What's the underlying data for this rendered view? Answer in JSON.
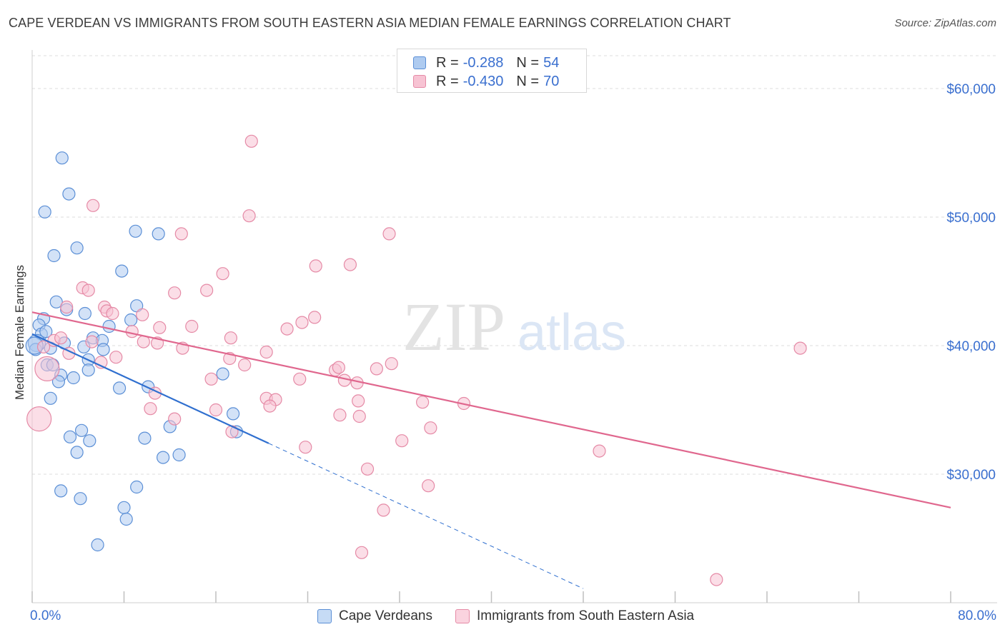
{
  "title": "CAPE VERDEAN VS IMMIGRANTS FROM SOUTH EASTERN ASIA MEDIAN FEMALE EARNINGS CORRELATION CHART",
  "source": "Source: ZipAtlas.com",
  "watermark": {
    "zip": "ZIP",
    "atlas": "atlas"
  },
  "colors": {
    "blue_fill": "#aecbf0",
    "blue_stroke": "#5b8fd6",
    "blue_line": "#2f6fcf",
    "pink_fill": "#f7c3d3",
    "pink_stroke": "#e58aa6",
    "pink_line": "#e0678e",
    "axis_text": "#3a6fcf",
    "grid": "#dddddd"
  },
  "legend": {
    "rows": [
      {
        "r_label": "R =",
        "r_value": "-0.288",
        "n_label": "N =",
        "n_value": "54",
        "color": "blue"
      },
      {
        "r_label": "R =",
        "r_value": "-0.430",
        "n_label": "N =",
        "n_value": "70",
        "color": "pink"
      }
    ]
  },
  "bottom_legend": [
    "Cape Verdeans",
    "Immigrants from South Eastern Asia"
  ],
  "chart_data": {
    "type": "scatter",
    "xlabel": "",
    "ylabel": "Median Female Earnings",
    "xlim": [
      0,
      80
    ],
    "ylim": [
      20000,
      63000
    ],
    "x_tick_labels": {
      "min": "0.0%",
      "max": "80.0%"
    },
    "y_ticks": [
      {
        "value": 60000,
        "label": "$60,000"
      },
      {
        "value": 50000,
        "label": "$50,000"
      },
      {
        "value": 40000,
        "label": "$40,000"
      },
      {
        "value": 30000,
        "label": "$30,000"
      }
    ],
    "series": [
      {
        "name": "Cape Verdeans",
        "color": "blue",
        "points": [
          [
            2.6,
            54600
          ],
          [
            3.2,
            51800
          ],
          [
            1.1,
            50400
          ],
          [
            9.0,
            48900
          ],
          [
            11.0,
            48700
          ],
          [
            3.9,
            47600
          ],
          [
            1.9,
            47000
          ],
          [
            7.8,
            45800
          ],
          [
            2.1,
            43400
          ],
          [
            9.1,
            43100
          ],
          [
            4.6,
            42500
          ],
          [
            1.0,
            42100
          ],
          [
            8.6,
            42000
          ],
          [
            3.0,
            42800
          ],
          [
            0.6,
            41600
          ],
          [
            6.7,
            41500
          ],
          [
            0.8,
            40900
          ],
          [
            5.3,
            40600
          ],
          [
            6.1,
            40400
          ],
          [
            0.4,
            40200
          ],
          [
            2.8,
            40200
          ],
          [
            1.6,
            39800
          ],
          [
            4.5,
            39900
          ],
          [
            6.2,
            39700
          ],
          [
            0.3,
            39700
          ],
          [
            4.9,
            38900
          ],
          [
            1.3,
            38500
          ],
          [
            1.8,
            38500
          ],
          [
            4.9,
            38100
          ],
          [
            16.6,
            37800
          ],
          [
            2.5,
            37700
          ],
          [
            3.6,
            37500
          ],
          [
            2.3,
            37200
          ],
          [
            7.6,
            36700
          ],
          [
            10.1,
            36800
          ],
          [
            1.6,
            35900
          ],
          [
            17.5,
            34700
          ],
          [
            12.0,
            33700
          ],
          [
            4.3,
            33400
          ],
          [
            17.8,
            33300
          ],
          [
            3.3,
            32900
          ],
          [
            5.0,
            32600
          ],
          [
            9.8,
            32800
          ],
          [
            3.9,
            31700
          ],
          [
            12.8,
            31500
          ],
          [
            11.4,
            31300
          ],
          [
            9.1,
            29000
          ],
          [
            2.5,
            28700
          ],
          [
            4.2,
            28100
          ],
          [
            8.0,
            27400
          ],
          [
            8.2,
            26500
          ],
          [
            5.7,
            24500
          ],
          [
            0.2,
            40000
          ],
          [
            1.2,
            41100
          ]
        ]
      },
      {
        "name": "Immigrants from South Eastern Asia",
        "color": "pink",
        "points": [
          [
            19.1,
            55900
          ],
          [
            5.3,
            50900
          ],
          [
            18.9,
            50100
          ],
          [
            13.0,
            48700
          ],
          [
            31.1,
            48700
          ],
          [
            16.6,
            45600
          ],
          [
            24.7,
            46200
          ],
          [
            27.7,
            46300
          ],
          [
            4.4,
            44500
          ],
          [
            4.9,
            44300
          ],
          [
            12.4,
            44100
          ],
          [
            15.2,
            44300
          ],
          [
            6.3,
            43000
          ],
          [
            3.0,
            43000
          ],
          [
            6.5,
            42700
          ],
          [
            9.6,
            42400
          ],
          [
            7.0,
            42500
          ],
          [
            24.6,
            42200
          ],
          [
            11.1,
            41400
          ],
          [
            13.9,
            41500
          ],
          [
            22.2,
            41300
          ],
          [
            23.5,
            41800
          ],
          [
            8.7,
            41100
          ],
          [
            1.9,
            40400
          ],
          [
            17.3,
            40600
          ],
          [
            2.5,
            40600
          ],
          [
            5.2,
            40300
          ],
          [
            10.9,
            40200
          ],
          [
            13.1,
            39800
          ],
          [
            9.7,
            40300
          ],
          [
            1.0,
            39900
          ],
          [
            3.2,
            39400
          ],
          [
            20.4,
            39500
          ],
          [
            66.9,
            39800
          ],
          [
            7.3,
            39100
          ],
          [
            17.2,
            39000
          ],
          [
            6.0,
            38700
          ],
          [
            18.5,
            38500
          ],
          [
            31.3,
            38600
          ],
          [
            30.0,
            38200
          ],
          [
            26.4,
            38100
          ],
          [
            23.3,
            37400
          ],
          [
            15.6,
            37400
          ],
          [
            1.3,
            38200
          ],
          [
            27.2,
            37300
          ],
          [
            28.3,
            37100
          ],
          [
            10.7,
            36300
          ],
          [
            20.4,
            35900
          ],
          [
            21.2,
            35800
          ],
          [
            28.4,
            35700
          ],
          [
            34.0,
            35600
          ],
          [
            37.6,
            35500
          ],
          [
            16.0,
            35000
          ],
          [
            10.3,
            35100
          ],
          [
            20.7,
            35300
          ],
          [
            26.8,
            34600
          ],
          [
            28.5,
            34500
          ],
          [
            0.6,
            34300
          ],
          [
            17.4,
            33300
          ],
          [
            34.7,
            33600
          ],
          [
            32.2,
            32600
          ],
          [
            23.8,
            32100
          ],
          [
            49.4,
            31800
          ],
          [
            29.2,
            30400
          ],
          [
            34.5,
            29100
          ],
          [
            30.6,
            27200
          ],
          [
            28.7,
            23900
          ],
          [
            59.6,
            21800
          ],
          [
            26.7,
            38300
          ],
          [
            12.4,
            34300
          ]
        ]
      }
    ],
    "trend_lines": [
      {
        "series": "Cape Verdeans",
        "x": [
          0,
          20.6
        ],
        "y": [
          40900,
          32400
        ],
        "dashed_extension_to": [
          48.0,
          21100
        ]
      },
      {
        "series": "Immigrants from South Eastern Asia",
        "x": [
          0,
          80
        ],
        "y": [
          42600,
          27400
        ]
      }
    ]
  }
}
